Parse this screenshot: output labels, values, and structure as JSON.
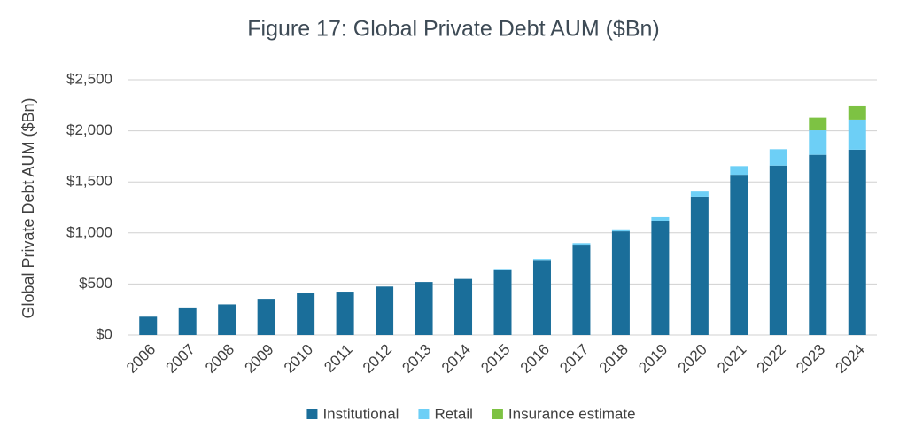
{
  "chart_data": {
    "type": "stacked_bar",
    "title": "Figure 17: Global Private Debt AUM ($Bn)",
    "y_label": "Global Private Debt AUM ($Bn)",
    "categories": [
      "2006",
      "2007",
      "2008",
      "2009",
      "2010",
      "2011",
      "2012",
      "2013",
      "2014",
      "2015",
      "2016",
      "2017",
      "2018",
      "2019",
      "2020",
      "2021",
      "2022",
      "2023",
      "2024"
    ],
    "series": [
      {
        "name": "Institutional",
        "color": "#1a6e9a",
        "values": [
          180,
          270,
          300,
          355,
          415,
          425,
          475,
          520,
          550,
          635,
          735,
          885,
          1015,
          1120,
          1355,
          1570,
          1660,
          1765,
          1815
        ]
      },
      {
        "name": "Retail",
        "color": "#6dcff6",
        "values": [
          0,
          0,
          0,
          0,
          0,
          0,
          0,
          0,
          0,
          5,
          10,
          15,
          20,
          35,
          50,
          85,
          160,
          240,
          295
        ]
      },
      {
        "name": "Insurance estimate",
        "color": "#7dc243",
        "values": [
          0,
          0,
          0,
          0,
          0,
          0,
          0,
          0,
          0,
          0,
          0,
          0,
          0,
          0,
          0,
          0,
          0,
          125,
          130
        ]
      }
    ],
    "ylim": [
      0,
      2500
    ],
    "yticks": [
      {
        "value": 0,
        "label": "$0"
      },
      {
        "value": 500,
        "label": "$500"
      },
      {
        "value": 1000,
        "label": "$1,000"
      },
      {
        "value": 1500,
        "label": "$1,500"
      },
      {
        "value": 2000,
        "label": "$2,000"
      },
      {
        "value": 2500,
        "label": "$2,500"
      }
    ],
    "grid": true,
    "legend": "bottom"
  }
}
